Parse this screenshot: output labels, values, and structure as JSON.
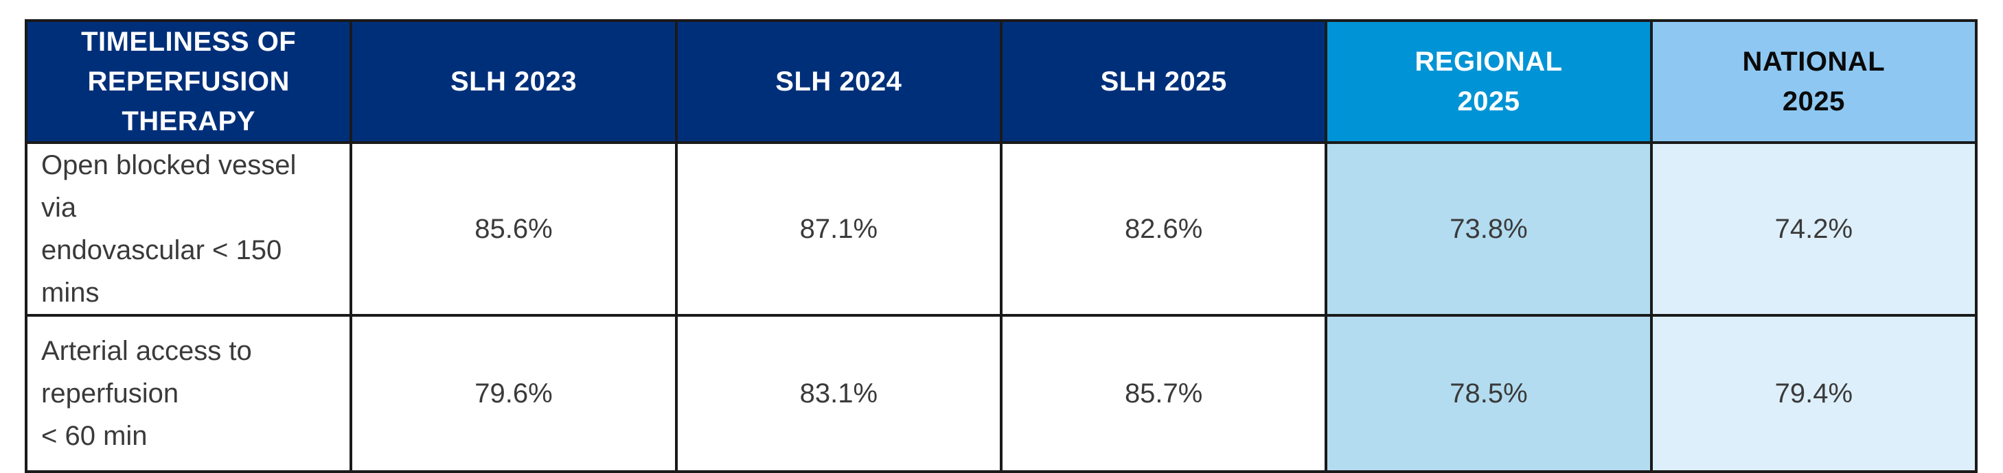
{
  "colors": {
    "header_navy": "#002f7a",
    "header_regional": "#0094d6",
    "header_national": "#8ec8f2",
    "cell_regional": "#b3dcf0",
    "cell_national": "#ddeffa",
    "border": "#1a1a1a",
    "body_text": "#3a3a3a"
  },
  "table": {
    "headers": [
      {
        "line1": "TIMELINESS OF",
        "line2": "REPERFUSION THERAPY"
      },
      {
        "line1": "SLH 2023",
        "line2": ""
      },
      {
        "line1": "SLH 2024",
        "line2": ""
      },
      {
        "line1": "SLH 2025",
        "line2": ""
      },
      {
        "line1": "REGIONAL",
        "line2": "2025"
      },
      {
        "line1": "NATIONAL",
        "line2": "2025"
      }
    ],
    "rows": [
      {
        "label_line1": "Open blocked vessel via",
        "label_line2": "endovascular < 150 mins",
        "values": [
          "85.6%",
          "87.1%",
          "82.6%",
          "73.8%",
          "74.2%"
        ]
      },
      {
        "label_line1": "Arterial access to reperfusion",
        "label_line2": "< 60 min",
        "values": [
          "79.6%",
          "83.1%",
          "85.7%",
          "78.5%",
          "79.4%"
        ]
      }
    ]
  }
}
